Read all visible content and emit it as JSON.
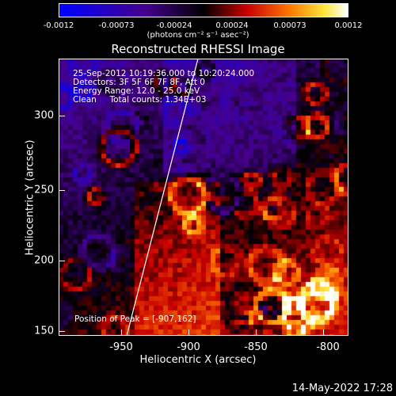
{
  "colorbar": {
    "ticks": [
      "-0.0012",
      "-0.00073",
      "-0.00024",
      "0.00024",
      "0.00073",
      "0.0012"
    ],
    "units": "(photons cm⁻² s⁻¹ asec⁻²)"
  },
  "title": "Reconstructed RHESSI Image",
  "info": {
    "line1": "25-Sep-2012 10:19:36.000 to 10:20:24.000",
    "line2": "Detectors: 3F 5F 6F 7F 8F, Att 0",
    "line3": "Energy Range: 12.0 - 25.0 keV",
    "line4": "Clean     Total counts: 1.34E+03",
    "peak": "Position of Peak = [-907,162]"
  },
  "axes": {
    "xlabel": "Heliocentric X (arcsec)",
    "ylabel": "Heliocentric Y (arcsec)",
    "xticks": [
      "-950",
      "-900",
      "-850",
      "-800"
    ],
    "yticks": [
      "300",
      "250",
      "200",
      "150"
    ]
  },
  "timestamp": "14-May-2022 17:28",
  "colors": {
    "bg": "#000000",
    "low": "#0000ff",
    "mid": "#ff0000",
    "high": "#ffffff"
  }
}
